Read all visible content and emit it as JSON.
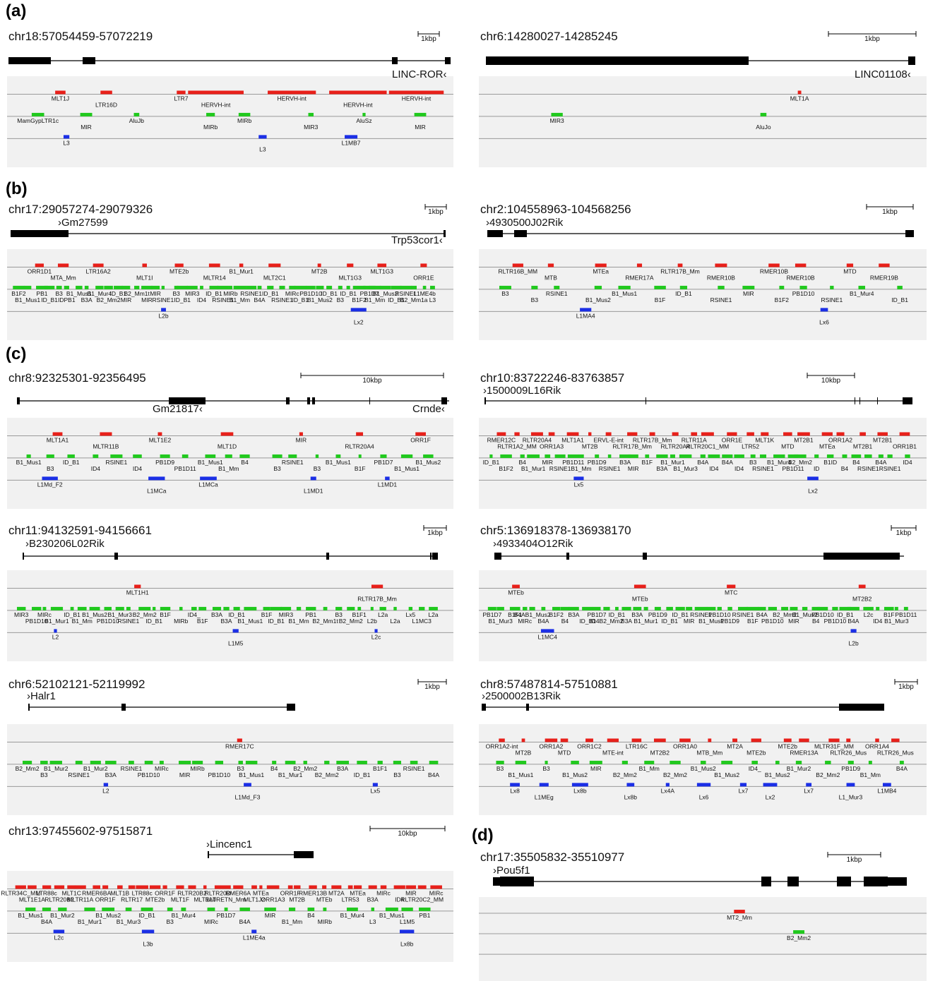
{
  "colors": {
    "ltr": "#e8201a",
    "sine": "#21c91e",
    "line": "#1b2fe6",
    "gene": "#000000",
    "track_bg": "#f1f1f1",
    "track_line": "#9a9a9a"
  },
  "sections": [
    {
      "label": "(a)",
      "panels": [
        {
          "coord": "chr18:57054459-57072219",
          "scale": "1kbp",
          "gene_labels": [
            {
              "text": "LINC-ROR‹",
              "pos": "end"
            }
          ],
          "rows": [
            {
              "class": "ltr",
              "labels": [
                "MLT1J",
                "LTR16D",
                "LTR7",
                "HERVH-int",
                "HERVH-int",
                "HERVH-int",
                "HERVH-int"
              ]
            },
            {
              "class": "sine",
              "labels": [
                "MamGypLTR1c",
                "MIR",
                "AluJb",
                "MIRb",
                "MIRb",
                "MIR3",
                "AluSz",
                "MIR"
              ]
            },
            {
              "class": "line",
              "labels": [
                "L3",
                "L3",
                "L1MB7"
              ]
            }
          ]
        },
        {
          "coord": "chr6:14280027-14285245",
          "scale": "1kbp",
          "gene_labels": [
            {
              "text": "LINC01108‹",
              "pos": "end"
            }
          ],
          "rows": [
            {
              "class": "ltr",
              "labels": [
                "MLT1A"
              ]
            },
            {
              "class": "sine",
              "labels": [
                "MIR3",
                "AluJo"
              ]
            },
            {
              "class": "line",
              "labels": []
            }
          ]
        }
      ]
    },
    {
      "label": "(b)",
      "panels": [
        {
          "coord": "chr17:29057274-29079326",
          "scale": "1kbp",
          "gene_labels": [
            {
              "text": "›Gm27599",
              "pos": "start"
            },
            {
              "text": "Trp53cor1‹",
              "pos": "end"
            }
          ],
          "rows": [
            {
              "class": "ltr",
              "labels": [
                "ORR1D1",
                "MTA_Mm",
                "LTR16A2",
                "MLT1I",
                "MTE2b",
                "MLTR14",
                "B1_Mur1",
                "MLT2C1",
                "MT2B",
                "MLT1G3",
                "MLT1G3",
                "ORR1E"
              ]
            },
            {
              "class": "sine",
              "labels": [
                "B1F2",
                "B1_Mus1",
                "PB1",
                "ID_B1",
                "B3",
                "IDPB1",
                "B1_Mus1",
                "B3A",
                "B1_Mur4",
                "B2_Mm2",
                "ID_B1",
                "MIR",
                "B2_Mm1t",
                "MIR",
                "MIR",
                "RSINE1",
                "B3",
                "ID_B1",
                "MIR3",
                "ID4",
                "ID_B1",
                "RSINE1",
                "MIRb",
                "B1_Mm",
                "RSINE1",
                "B4A",
                "ID_B1",
                "RSINE1",
                "MIRc",
                "ID_B1",
                "PB1D10",
                "B1_Mus2",
                "ID_B1",
                "B3",
                "ID_B1",
                "B1F2",
                "PB1D7",
                "B1_Mm",
                "B1_Mus2",
                "ID_B1",
                "RSINE1",
                "B2_Mm1a",
                "L1ME4b",
                "L3"
              ]
            },
            {
              "class": "line",
              "labels": [
                "L2b",
                "Lx2"
              ]
            }
          ]
        },
        {
          "coord": "chr2:104558963-104568256",
          "scale": "1kbp",
          "gene_labels": [
            {
              "text": "›4930500J02Rik",
              "pos": "start"
            }
          ],
          "rows": [
            {
              "class": "ltr",
              "labels": [
                "RLTR16B_MM",
                "MTB",
                "MTEa",
                "RMER17A",
                "RLTR17B_Mm",
                "RMER10B",
                "RMER10B",
                "RMER10B",
                "MTD",
                "RMER19B"
              ]
            },
            {
              "class": "sine",
              "labels": [
                "B3",
                "B3",
                "RSINE1",
                "B1_Mus2",
                "B1_Mus1",
                "B1F",
                "ID_B1",
                "RSINE1",
                "MIR",
                "B1F2",
                "PB1D10",
                "RSINE1",
                "B1_Mur4",
                "ID_B1"
              ]
            },
            {
              "class": "line",
              "labels": [
                "L1MA4",
                "Lx6"
              ]
            }
          ]
        }
      ]
    },
    {
      "label": "(c)",
      "panels": [
        {
          "coord": "chr8:92325301-92356495",
          "scale": "10kbp",
          "gene_labels": [
            {
              "text": "Gm21817‹",
              "pos": "mid"
            },
            {
              "text": "Crnde‹",
              "pos": "end"
            }
          ],
          "rows": [
            {
              "class": "ltr",
              "labels": [
                "MLT1A1",
                "MLTR11B",
                "MLT1E2",
                "MLT1D",
                "MIR",
                "RLTR20A4",
                "ORR1F"
              ]
            },
            {
              "class": "sine",
              "labels": [
                "B1_Mus1",
                "B3",
                "ID_B1",
                "ID4",
                "RSINE1",
                "ID4",
                "PB1D9",
                "PB1D11",
                "B1_Mus1",
                "B1_Mm",
                "B4",
                "B3",
                "RSINE1",
                "B3",
                "B1_Mus1",
                "B1F",
                "PB1D7",
                "B1_Mus1",
                "B1_Mus2"
              ]
            },
            {
              "class": "line",
              "labels": [
                "L1Md_F2",
                "L1MCa",
                "L1MCa",
                "L1MD1",
                "L1MD1"
              ]
            }
          ]
        },
        {
          "coord": "chr10:83722246-83763857",
          "scale": "10kbp",
          "gene_labels": [
            {
              "text": "›1500009L16Rik",
              "pos": "start"
            }
          ],
          "rows": [
            {
              "class": "ltr",
              "labels": [
                "RMER12C",
                "RLTR1A2_MM",
                "RLTR20A4",
                "ORR1A3",
                "MLT1A1",
                "MT2B",
                "ERVL-E-int",
                "RLTR17B_Mm",
                "RLTR17B_Mm",
                "RLTR20A4",
                "RLTR11A",
                "RLTR20C1_MM",
                "ORR1E",
                "LTR52",
                "MLT1K",
                "MTD",
                "MT2B1",
                "MTEa",
                "ORR1A2",
                "MT2B1",
                "MT2B1",
                "ORR1B1"
              ]
            },
            {
              "class": "sine",
              "labels": [
                "ID_B1",
                "B1F2",
                "B4",
                "B1_Mur1",
                "MIR",
                "RSINE1",
                "PB1D11",
                "B1_Mm",
                "PB1D9",
                "RSINE1",
                "B3A",
                "MIR",
                "B1F",
                "B3A",
                "B1_Mur1",
                "B1_Mur3",
                "B4A",
                "ID4",
                "B4A",
                "ID4",
                "B3",
                "RSINE1",
                "B1_Mur4",
                "PB1D11",
                "B2_Mm2",
                "ID",
                "B1ID",
                "B4",
                "B4",
                "RSINE1",
                "B4A",
                "RSINE1",
                "ID4"
              ]
            },
            {
              "class": "line",
              "labels": [
                "Lx5",
                "Lx2"
              ]
            }
          ]
        },
        {
          "coord": "chr11:94132591-94156661",
          "scale": "1kbp",
          "gene_labels": [
            {
              "text": "›B230206L02Rik",
              "pos": "start"
            }
          ],
          "rows": [
            {
              "class": "ltr",
              "labels": [
                "MLT1H1",
                "RLTR17B_Mm"
              ]
            },
            {
              "class": "sine",
              "labels": [
                "MIR3",
                "PB1D10",
                "MIRc",
                "B1_Mur1",
                "ID_B1",
                "B1_Mm",
                "B1_Mus2",
                "PB1D10",
                "B1_Mur3",
                "RSINE1",
                "B2_Mm2",
                "ID_B1",
                "B1F",
                "MIRb",
                "ID4_",
                "B1F",
                "B3A",
                "B3A",
                "ID_B1",
                "B1_Mus1",
                "B1F",
                "ID_B1",
                "MIR3",
                "B1_Mm",
                "PB1",
                "B2_Mm1t",
                "B3",
                "B2_Mm2",
                "B1F1",
                "L2b",
                "L2a",
                "L2a",
                "Lx5",
                "L1MC3",
                "L2a"
              ]
            },
            {
              "class": "line",
              "labels": [
                "L2",
                "L1M5",
                "L2c"
              ]
            }
          ]
        },
        {
          "coord": "chr5:136918378-136938170",
          "scale": "1kbp",
          "gene_labels": [
            {
              "text": "›4933404O12Rik",
              "pos": "start"
            }
          ],
          "rows": [
            {
              "class": "ltr",
              "labels": [
                "MTEb",
                "MTEb",
                "MTC",
                "MT2B2"
              ]
            },
            {
              "class": "sine",
              "labels": [
                "PB1D7",
                "B1_Mur3",
                "B1F1",
                "MIRc",
                "B4AB1_Mus2",
                "B4A",
                "B1F2",
                "B4",
                "B3A",
                "ID_B1",
                "PB1D7",
                "ID4B2_Mm2",
                "ID_B1",
                "B3A",
                "B3A",
                "B1_Mur1",
                "PB1D9",
                "ID_B1",
                "ID_B1",
                "MIR",
                "RSINE1",
                "B1_Mus1",
                "PB1D10",
                "PB1D9",
                "RSINE1",
                "B1F",
                "B4A",
                "PB1D10",
                "B2_Mm2",
                "MIR",
                "B1_Mus2",
                "B4",
                "PB1D10",
                "PB1D10",
                "ID_B1",
                "B4A",
                "L2c",
                "ID4",
                "B1F",
                "B1_Mur3",
                "PB1D11"
              ]
            },
            {
              "class": "line",
              "labels": [
                "L1MC4",
                "L2b"
              ]
            }
          ]
        },
        {
          "coord": "chr6:52102121-52119992",
          "scale": "1kbp",
          "gene_labels": [
            {
              "text": "›Halr1",
              "pos": "start"
            }
          ],
          "rows": [
            {
              "class": "ltr",
              "labels": [
                "RMER17C"
              ]
            },
            {
              "class": "sine",
              "labels": [
                "B2_Mm2",
                "B3",
                "B1_Mur2",
                "RSINE1",
                "B1_Mur2",
                "B3A",
                "RSINE1",
                "PB1D10",
                "MIRc",
                "MIR",
                "MIRb",
                "PB1D10",
                "B3",
                "B1_Mus1",
                "B4",
                "B1_Mur1",
                "B2_Mm2",
                "B2_Mm2",
                "B3A",
                "ID_B1",
                "B1F1",
                "B3",
                "RSINE1",
                "B4A"
              ]
            },
            {
              "class": "line",
              "labels": [
                "L2",
                "L1Md_F3",
                "Lx5"
              ]
            }
          ]
        },
        {
          "coord": "chr8:57487814-57510881",
          "scale": "1kbp",
          "gene_labels": [
            {
              "text": "›2500002B13Rik",
              "pos": "start"
            }
          ],
          "rows": [
            {
              "class": "ltr",
              "labels": [
                "ORR1A2-int",
                "MT2B",
                "ORR1A2",
                "MTD",
                "ORR1C2",
                "MTE-int",
                "LTR16C",
                "MT2B2",
                "ORR1A0",
                "MTB_Mm",
                "MT2A",
                "MTE2b",
                "MTE2b",
                "RMER13A",
                "MLTR31F_MM",
                "RLTR26_Mus",
                "ORR1A4",
                "RLTR26_Mus"
              ]
            },
            {
              "class": "sine",
              "labels": [
                "B3",
                "B1_Mus1",
                "B3",
                "B1_Mus2",
                "MIR",
                "B2_Mm2",
                "B1_Mm",
                "B2_Mm2",
                "B1_Mus2",
                "B1_Mus2",
                "ID4_",
                "B1_Mus2",
                "B1_Mur2",
                "B2_Mm2",
                "PB1D9",
                "B1_Mm",
                "B4A"
              ]
            },
            {
              "class": "line",
              "labels": [
                "Lx8",
                "L1MEg",
                "Lx8b",
                "Lx8b",
                "Lx4A",
                "Lx6",
                "Lx7",
                "Lx2",
                "Lx7",
                "L1_Mur3",
                "L1MB4"
              ]
            }
          ]
        },
        {
          "coord": "chr13:97455602-97515871",
          "scale": "10kbp",
          "gene_labels": [
            {
              "text": "›Lincenc1",
              "pos": "start"
            }
          ],
          "rows": [
            {
              "class": "ltr",
              "labels": [
                "RLTR34C_MM",
                "MLT1E1A",
                "LTR88c",
                "RLTR20B2",
                "MLT1C",
                "MLTR11A",
                "RMER6BA",
                "ORR1F",
                "MLT1B",
                "RLTR17",
                "LTR88c",
                "MTE2b",
                "ORR1F",
                "MLT1F",
                "RLTR20B2",
                "MLT1A0",
                "RLTR20D",
                "RLTRETN_Mm",
                "RMER6A",
                "MLT1J2",
                "MTEa",
                "ORR1A3",
                "ORR1F",
                "MT2B",
                "RMER13B",
                "MTEb",
                "MT2A",
                "LTR53",
                "MTEa",
                "B3A",
                "MIRc",
                "ID4",
                "MIR",
                "RLTR20C2_MM",
                "MIRc"
              ]
            },
            {
              "class": "sine",
              "labels": [
                "B1_Mus1",
                "B4A",
                "B1_Mur2",
                "B1_Mur1",
                "B1_Mus2",
                "B1_Mur3",
                "ID_B1",
                "B3",
                "B1_Mur4",
                "MIRc",
                "PB1D7",
                "B4A",
                "MIR",
                "B1_Mm",
                "B4",
                "MIRb",
                "B1_Mur4",
                "L3",
                "B1_Mus1",
                "L1M5",
                "PB1"
              ]
            },
            {
              "class": "line",
              "labels": [
                "L2c",
                "L3b",
                "L1ME4a",
                "Lx8b"
              ]
            }
          ]
        }
      ]
    },
    {
      "label": "(d)",
      "panels": [
        {
          "coord": "chr17:35505832-35510977",
          "scale": "1kbp",
          "gene_labels": [
            {
              "text": "›Pou5f1",
              "pos": "start"
            }
          ],
          "rows": [
            {
              "class": "ltr",
              "labels": [
                "MT2_Mm"
              ]
            },
            {
              "class": "sine",
              "labels": [
                "B2_Mm2"
              ]
            },
            {
              "class": "line",
              "labels": []
            }
          ]
        }
      ]
    }
  ]
}
